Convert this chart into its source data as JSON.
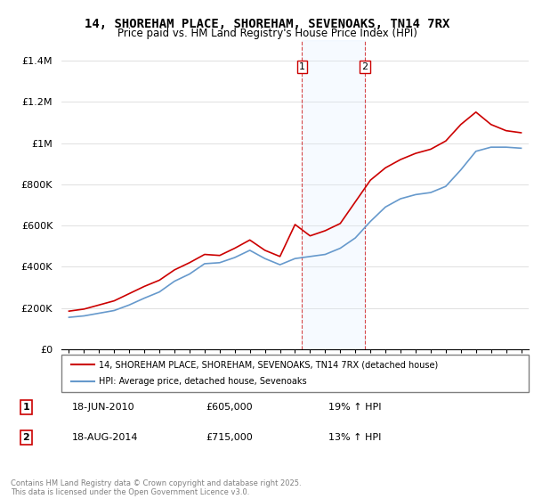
{
  "title": "14, SHOREHAM PLACE, SHOREHAM, SEVENOAKS, TN14 7RX",
  "subtitle": "Price paid vs. HM Land Registry's House Price Index (HPI)",
  "ylabel_ticks": [
    0,
    200000,
    400000,
    600000,
    800000,
    1000000,
    1200000,
    1400000
  ],
  "ylabel_labels": [
    "£0",
    "£200K",
    "£400K",
    "£600K",
    "£800K",
    "£1M",
    "£1.2M",
    "£1.4M"
  ],
  "ylim": [
    0,
    1500000
  ],
  "xlim_start": 1994.5,
  "xlim_end": 2025.5,
  "marker1_year": 2010.46,
  "marker2_year": 2014.63,
  "sale1_label": "1",
  "sale2_label": "2",
  "sale1_date": "18-JUN-2010",
  "sale1_price": "£605,000",
  "sale1_hpi": "19% ↑ HPI",
  "sale2_date": "18-AUG-2014",
  "sale2_price": "£715,000",
  "sale2_hpi": "13% ↑ HPI",
  "legend_label1": "14, SHOREHAM PLACE, SHOREHAM, SEVENOAKS, TN14 7RX (detached house)",
  "legend_label2": "HPI: Average price, detached house, Sevenoaks",
  "line1_color": "#cc0000",
  "line2_color": "#6699cc",
  "marker_box_color": "#cc0000",
  "shading_color": "#ddeeff",
  "footer": "Contains HM Land Registry data © Crown copyright and database right 2025.\nThis data is licensed under the Open Government Licence v3.0.",
  "hpi_years": [
    1995,
    1996,
    1997,
    1998,
    1999,
    2000,
    2001,
    2002,
    2003,
    2004,
    2005,
    2006,
    2007,
    2008,
    2009,
    2010,
    2011,
    2012,
    2013,
    2014,
    2015,
    2016,
    2017,
    2018,
    2019,
    2020,
    2021,
    2022,
    2023,
    2024,
    2025
  ],
  "hpi_values": [
    155000,
    162000,
    175000,
    188000,
    215000,
    248000,
    278000,
    330000,
    365000,
    415000,
    420000,
    445000,
    480000,
    440000,
    410000,
    440000,
    450000,
    460000,
    490000,
    540000,
    620000,
    690000,
    730000,
    750000,
    760000,
    790000,
    870000,
    960000,
    980000,
    980000,
    975000
  ],
  "red_years": [
    1995,
    1996,
    1997,
    1998,
    1999,
    2000,
    2001,
    2002,
    2003,
    2004,
    2005,
    2006,
    2007,
    2008,
    2009,
    2010,
    2011,
    2012,
    2013,
    2014,
    2015,
    2016,
    2017,
    2018,
    2019,
    2020,
    2021,
    2022,
    2023,
    2024,
    2025
  ],
  "red_values": [
    185000,
    195000,
    215000,
    235000,
    270000,
    305000,
    335000,
    385000,
    420000,
    460000,
    455000,
    490000,
    530000,
    480000,
    450000,
    605000,
    550000,
    575000,
    610000,
    715000,
    820000,
    880000,
    920000,
    950000,
    970000,
    1010000,
    1090000,
    1150000,
    1090000,
    1060000,
    1050000
  ]
}
